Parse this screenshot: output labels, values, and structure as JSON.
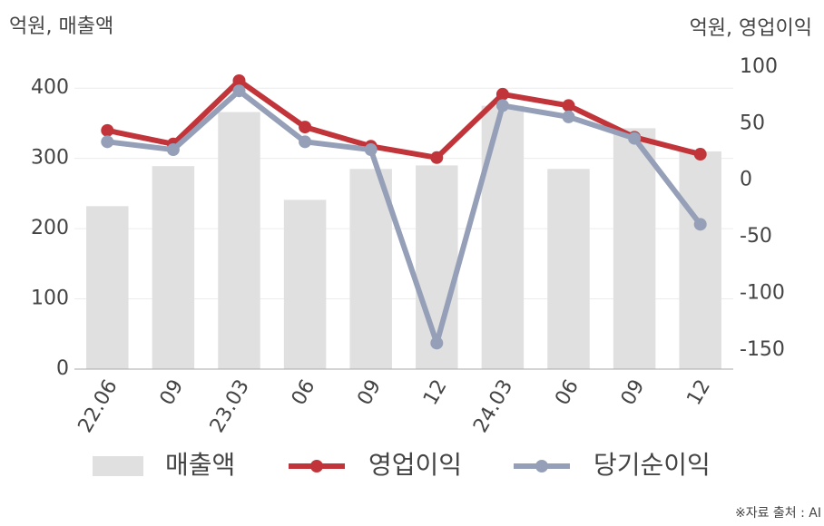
{
  "chart_data": {
    "type": "bar",
    "y_label": "억원, 매출액",
    "y2_label": "억원, 영업이익",
    "source": "※자료 출처 : AI",
    "categories": [
      "22.06",
      "09",
      "23.03",
      "06",
      "09",
      "12",
      "24.03",
      "06",
      "09",
      "12"
    ],
    "series": [
      {
        "name": "매출액",
        "type": "bar",
        "color": "#e0e0e0",
        "axis": "y",
        "values": [
          232,
          289,
          366,
          241,
          285,
          290,
          375,
          285,
          343,
          310
        ]
      },
      {
        "name": "영업이익",
        "type": "line",
        "color": "#c1353a",
        "axis": "y2",
        "values": [
          44,
          32,
          88,
          47,
          30,
          20,
          76,
          66,
          38,
          23
        ]
      },
      {
        "name": "당기순이익",
        "type": "line",
        "color": "#95a0b8",
        "axis": "y2",
        "values": [
          34,
          27,
          79,
          34,
          27,
          -144,
          66,
          56,
          37,
          -39
        ]
      }
    ],
    "ylim": [
      0,
      430
    ],
    "yticks": [
      0,
      100,
      200,
      300,
      400
    ],
    "y2lim": [
      -167,
      100
    ],
    "y2ticks": [
      -150,
      -100,
      -50,
      0,
      50,
      100
    ],
    "grid": true,
    "legend": "bottom"
  }
}
